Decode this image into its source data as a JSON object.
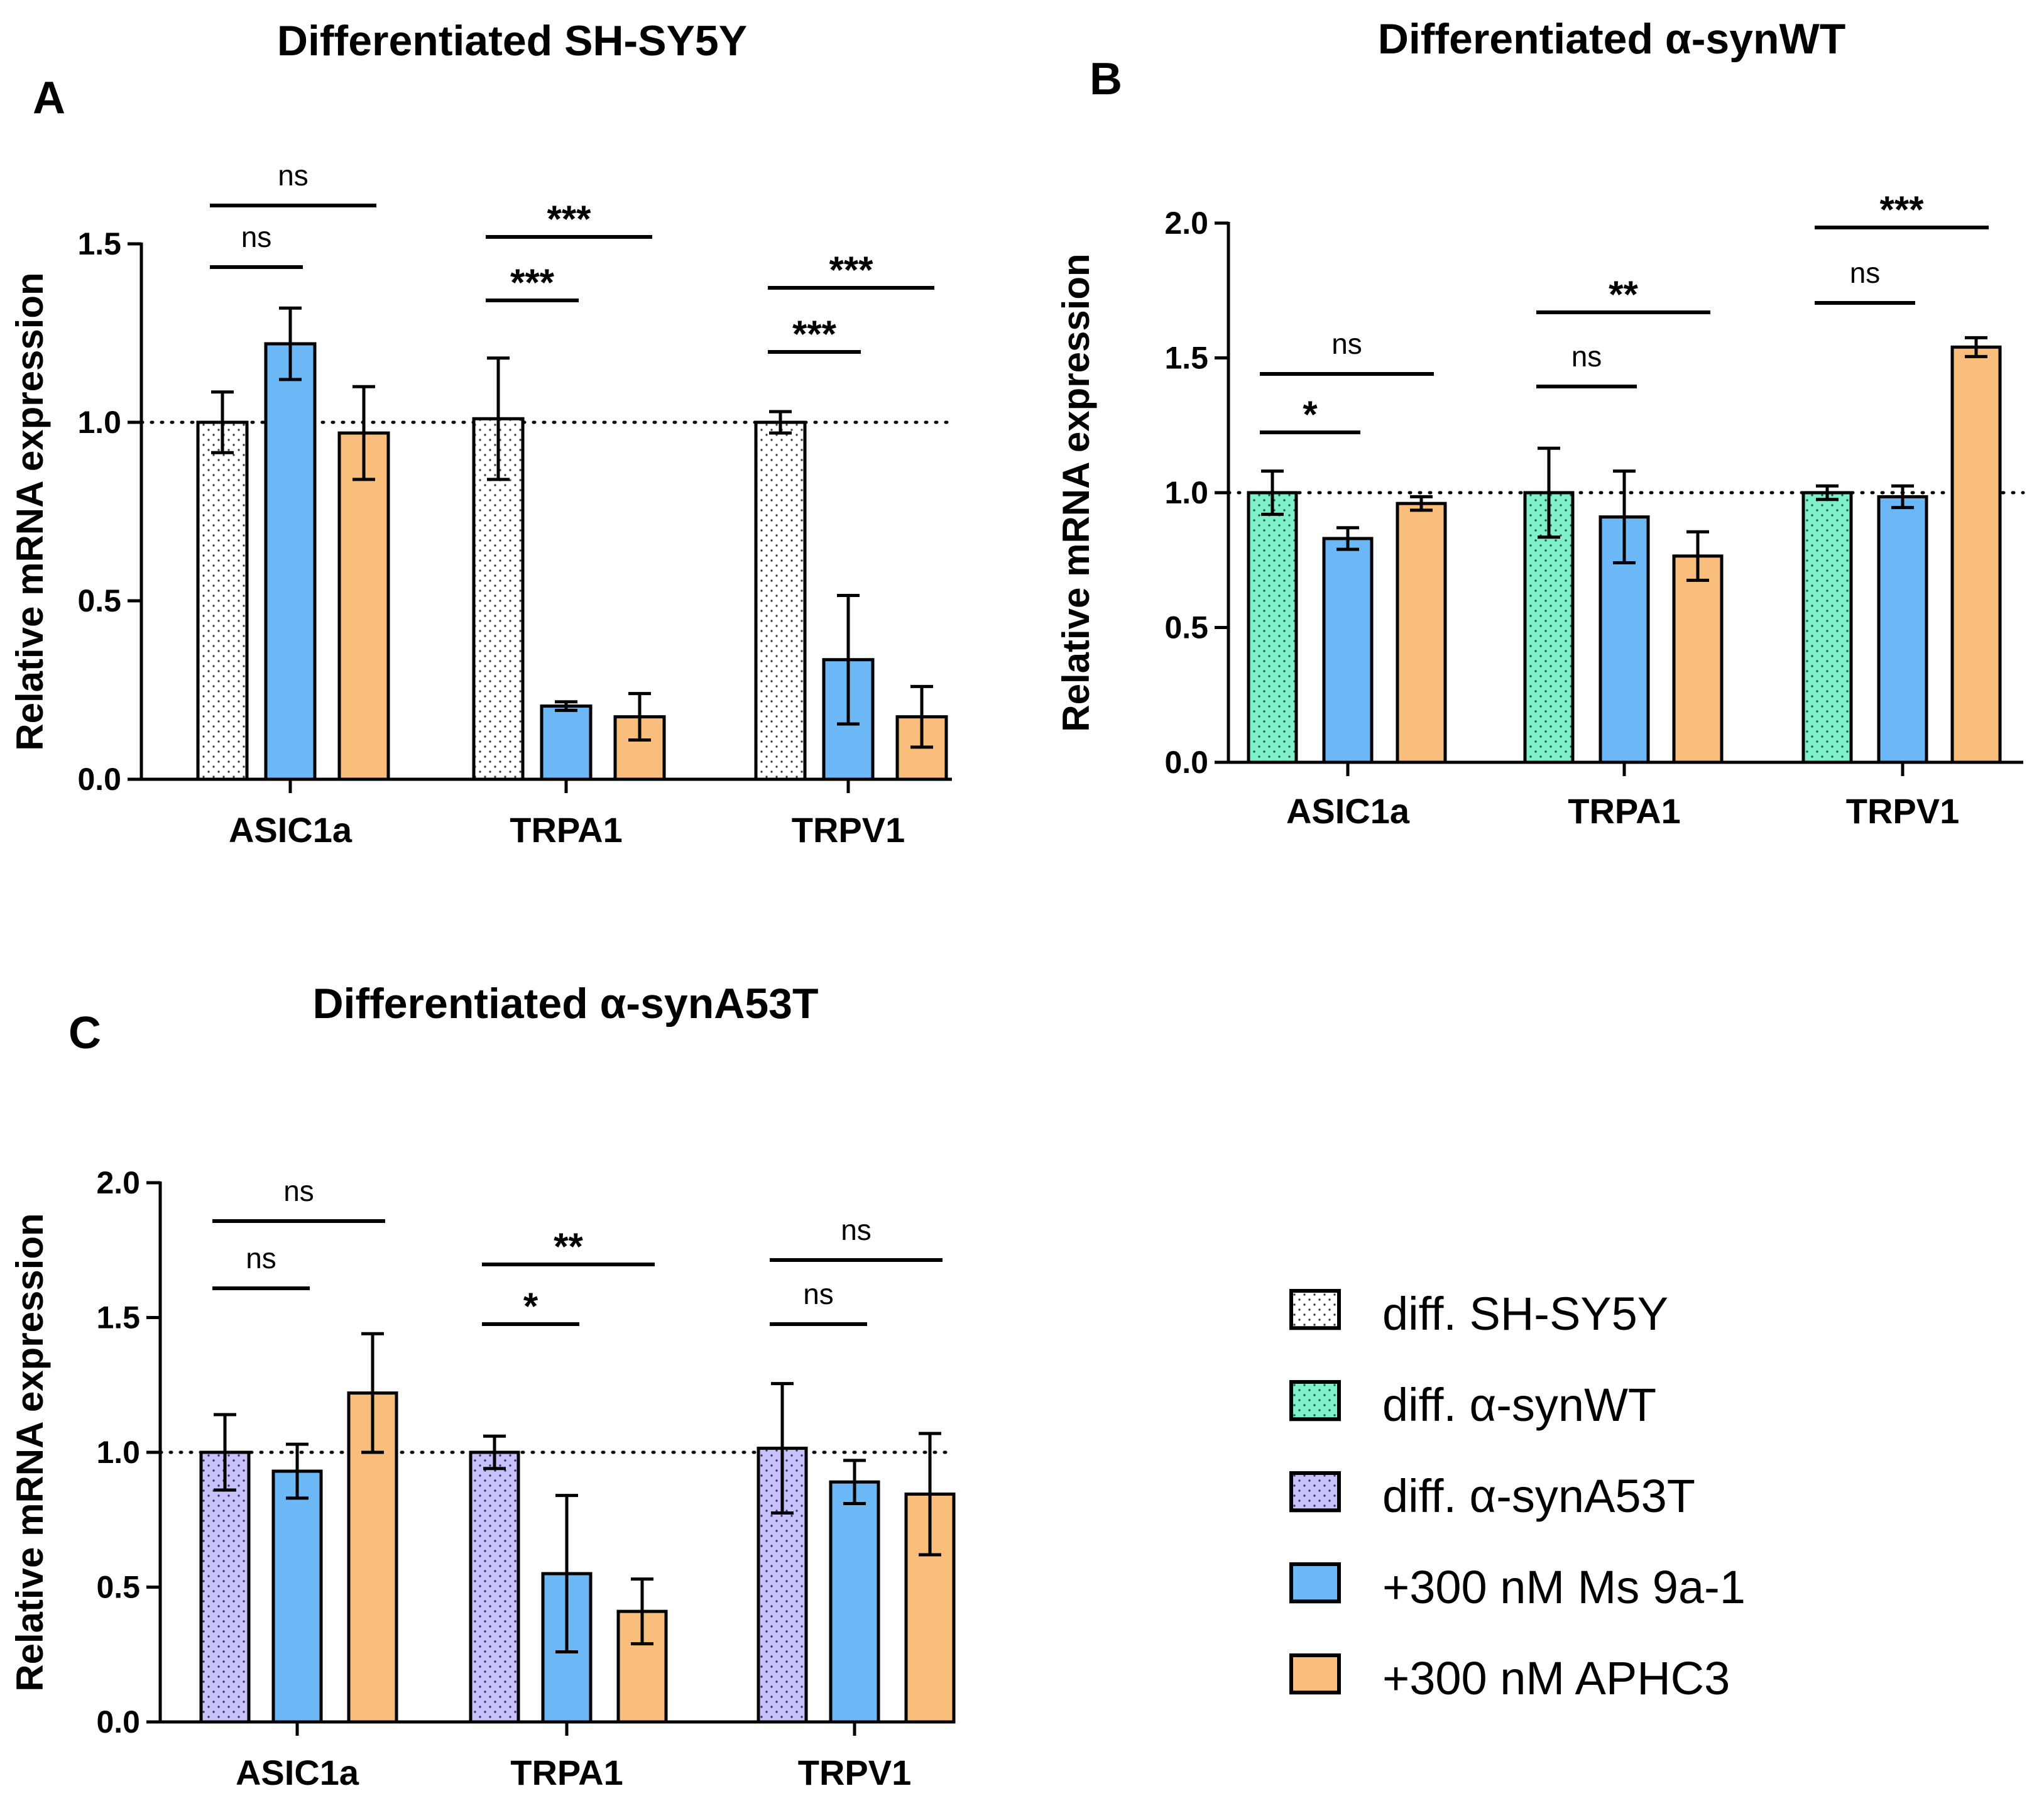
{
  "chart_data": [
    {
      "panel": "A",
      "type": "bar",
      "title": "Differentiated SH-SY5Y",
      "ylabel": "Relative mRNA expression",
      "ylim": [
        0,
        1.5
      ],
      "yticks": [
        "0.0",
        "0.5",
        "1.0",
        "1.5"
      ],
      "ytick_values": [
        0,
        0.5,
        1.0,
        1.5
      ],
      "reference_line": 1.0,
      "categories": [
        "ASIC1a",
        "TRPA1",
        "TRPV1"
      ],
      "series": [
        {
          "name": "diff. SH-SY5Y",
          "color": "#ffffff",
          "dot_color": "#444444",
          "values": [
            1.0,
            1.01,
            1.0
          ],
          "errors": [
            0.085,
            0.17,
            0.03
          ]
        },
        {
          "name": "+300 nM Ms 9a-1",
          "color": "#6cb8f6",
          "values": [
            1.22,
            0.205,
            0.335
          ],
          "errors": [
            0.1,
            0.012,
            0.18
          ]
        },
        {
          "name": "+300 nM APHC3",
          "color": "#f9be7c",
          "values": [
            0.97,
            0.175,
            0.175
          ],
          "errors": [
            0.13,
            0.065,
            0.085
          ]
        }
      ],
      "significance": [
        {
          "category": 0,
          "from": 0,
          "to": 1,
          "label": "ns",
          "level": 0
        },
        {
          "category": 0,
          "from": 0,
          "to": 2,
          "label": "ns",
          "level": 1
        },
        {
          "category": 1,
          "from": 0,
          "to": 1,
          "label": "***",
          "level": 0
        },
        {
          "category": 1,
          "from": 0,
          "to": 2,
          "label": "***",
          "level": 1
        },
        {
          "category": 2,
          "from": 0,
          "to": 1,
          "label": "***",
          "level": 0
        },
        {
          "category": 2,
          "from": 0,
          "to": 2,
          "label": "***",
          "level": 1
        }
      ]
    },
    {
      "panel": "B",
      "type": "bar",
      "title": "Differentiated α-synWT",
      "ylabel": "Relative mRNA expression",
      "ylim": [
        0,
        2.0
      ],
      "yticks": [
        "0.0",
        "0.5",
        "1.0",
        "1.5",
        "2.0"
      ],
      "ytick_values": [
        0,
        0.5,
        1.0,
        1.5,
        2.0
      ],
      "reference_line": 1.0,
      "categories": [
        "ASIC1a",
        "TRPA1",
        "TRPV1"
      ],
      "series": [
        {
          "name": "diff. α-synWT",
          "color": "#7ff0cc",
          "dot_color": "#2a5a4a",
          "values": [
            1.0,
            1.0,
            1.0
          ],
          "errors": [
            0.08,
            0.165,
            0.025
          ]
        },
        {
          "name": "+300 nM Ms 9a-1",
          "color": "#6cb8f6",
          "values": [
            0.83,
            0.91,
            0.985
          ],
          "errors": [
            0.04,
            0.17,
            0.04
          ]
        },
        {
          "name": "+300 nM APHC3",
          "color": "#f9be7c",
          "values": [
            0.96,
            0.765,
            1.54
          ],
          "errors": [
            0.025,
            0.09,
            0.035
          ]
        }
      ],
      "significance": [
        {
          "category": 0,
          "from": 0,
          "to": 1,
          "label": "*",
          "level": 0
        },
        {
          "category": 0,
          "from": 0,
          "to": 2,
          "label": "ns",
          "level": 1
        },
        {
          "category": 1,
          "from": 0,
          "to": 1,
          "label": "ns",
          "level": 0
        },
        {
          "category": 1,
          "from": 0,
          "to": 2,
          "label": "**",
          "level": 1
        },
        {
          "category": 2,
          "from": 0,
          "to": 1,
          "label": "ns",
          "level": 0
        },
        {
          "category": 2,
          "from": 0,
          "to": 2,
          "label": "***",
          "level": 1
        }
      ]
    },
    {
      "panel": "C",
      "type": "bar",
      "title": "Differentiated α-synA53T",
      "ylabel": "Relative mRNA expression",
      "ylim": [
        0,
        2.0
      ],
      "yticks": [
        "0.0",
        "0.5",
        "1.0",
        "1.5",
        "2.0"
      ],
      "ytick_values": [
        0,
        0.5,
        1.0,
        1.5,
        2.0
      ],
      "reference_line": 1.0,
      "categories": [
        "ASIC1a",
        "TRPA1",
        "TRPV1"
      ],
      "series": [
        {
          "name": "diff. α-synA53T",
          "color": "#c8c2fb",
          "dot_color": "#3a3470",
          "values": [
            1.0,
            1.0,
            1.015
          ],
          "errors": [
            0.14,
            0.06,
            0.24
          ]
        },
        {
          "name": "+300 nM Ms 9a-1",
          "color": "#6cb8f6",
          "values": [
            0.93,
            0.55,
            0.89
          ],
          "errors": [
            0.1,
            0.29,
            0.08
          ]
        },
        {
          "name": "+300 nM APHC3",
          "color": "#f9be7c",
          "values": [
            1.22,
            0.41,
            0.845
          ],
          "errors": [
            0.22,
            0.12,
            0.225
          ]
        }
      ],
      "significance": [
        {
          "category": 0,
          "from": 0,
          "to": 1,
          "label": "ns",
          "level": 0
        },
        {
          "category": 0,
          "from": 0,
          "to": 2,
          "label": "ns",
          "level": 1
        },
        {
          "category": 1,
          "from": 0,
          "to": 1,
          "label": "*",
          "level": 0
        },
        {
          "category": 1,
          "from": 0,
          "to": 2,
          "label": "**",
          "level": 1
        },
        {
          "category": 2,
          "from": 0,
          "to": 1,
          "label": "ns",
          "level": 0
        },
        {
          "category": 2,
          "from": 0,
          "to": 2,
          "label": "ns",
          "level": 1
        }
      ]
    }
  ],
  "legend": [
    {
      "label": "diff. SH-SY5Y",
      "color": "#ffffff",
      "dot_color": "#444444",
      "dotted": true
    },
    {
      "label": "diff. α-synWT",
      "color": "#7ff0cc",
      "dot_color": "#2a5a4a",
      "dotted": true
    },
    {
      "label": "diff. α-synA53T",
      "color": "#c8c2fb",
      "dot_color": "#3a3470",
      "dotted": true
    },
    {
      "label": "+300 nM Ms 9a-1",
      "color": "#6cb8f6",
      "dotted": false
    },
    {
      "label": "+300 nM APHC3",
      "color": "#f9be7c",
      "dotted": false
    }
  ]
}
